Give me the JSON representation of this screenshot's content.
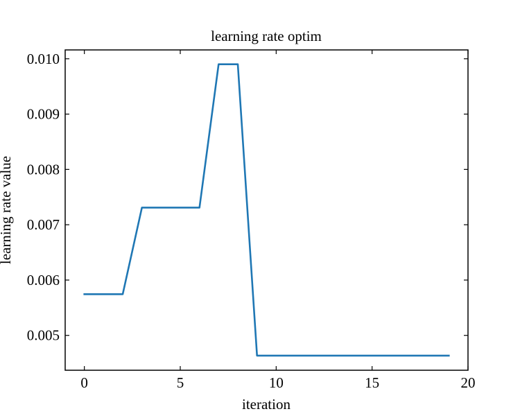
{
  "chart_data": {
    "type": "line",
    "title": "learning rate optim",
    "xlabel": "iteration",
    "ylabel": "learning rate value",
    "xlim": [
      -1,
      20
    ],
    "ylim": [
      0.00437,
      0.01016
    ],
    "xticks": [
      0,
      5,
      10,
      15,
      20
    ],
    "xtick_labels": [
      "0",
      "5",
      "10",
      "15",
      "20"
    ],
    "yticks": [
      0.005,
      0.006,
      0.007,
      0.008,
      0.009,
      0.01
    ],
    "ytick_labels": [
      "0.005",
      "0.006",
      "0.007",
      "0.008",
      "0.009",
      "0.010"
    ],
    "tick_direction": "in",
    "grid": false,
    "series": [
      {
        "color": "#1f77b4",
        "x": [
          0,
          1,
          2,
          3,
          4,
          5,
          6,
          7,
          8,
          9,
          10,
          11,
          12,
          13,
          14,
          15,
          16,
          17,
          18,
          19
        ],
        "y": [
          0.005745,
          0.005745,
          0.005745,
          0.00731,
          0.00731,
          0.00731,
          0.00731,
          0.0099,
          0.0099,
          0.004635,
          0.004635,
          0.004635,
          0.004635,
          0.004635,
          0.004635,
          0.004635,
          0.004635,
          0.004635,
          0.004635,
          0.004635
        ]
      }
    ]
  }
}
